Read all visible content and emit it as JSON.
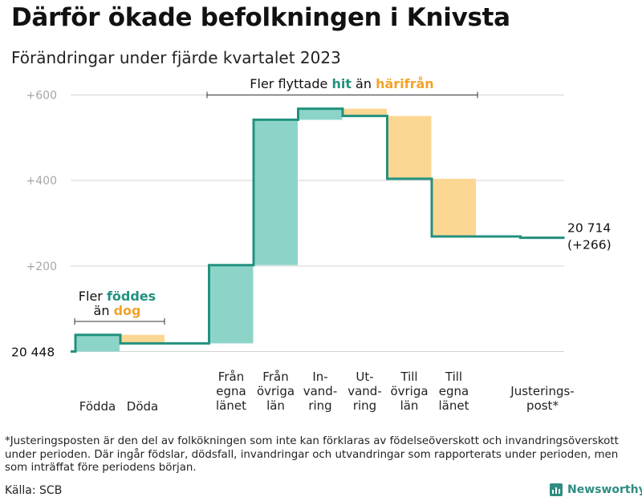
{
  "title": "Därför ökade befolkningen i Knivsta",
  "subtitle": "Förändringar under fjärde kvartalet 2023",
  "chart_data": {
    "type": "waterfall",
    "start_value": 20448,
    "start_label": "20  448",
    "end_label": "20 714",
    "end_change_label": "(+266)",
    "y_ticks": [
      {
        "value": 200,
        "label": "+200"
      },
      {
        "value": 400,
        "label": "+400"
      },
      {
        "value": 600,
        "label": "+600"
      }
    ],
    "ylim": [
      0,
      600
    ],
    "steps": [
      {
        "label": [
          "Födda"
        ],
        "change": 39
      },
      {
        "label": [
          "Döda"
        ],
        "change": -20
      },
      {
        "label": [
          "Från",
          "egna",
          "länet"
        ],
        "change": 183
      },
      {
        "label": [
          "Från",
          "övriga",
          "län"
        ],
        "change": 340
      },
      {
        "label": [
          "In-",
          "vand-",
          "ring"
        ],
        "change": 26
      },
      {
        "label": [
          "Ut-",
          "vand-",
          "ring"
        ],
        "change": -17
      },
      {
        "label": [
          "Till",
          "övriga",
          "län"
        ],
        "change": -147
      },
      {
        "label": [
          "Till",
          "egna",
          "länet"
        ],
        "change": -135
      },
      {
        "label": [
          "Justerings-",
          "post*"
        ],
        "change": -3
      }
    ],
    "annotations": {
      "births": {
        "line1": "Fler ",
        "line1_highlight": "föddes",
        "line2": "än ",
        "line2_highlight": "dog"
      },
      "migration": {
        "prefix": "Fler flyttade ",
        "highlight1": "hit",
        "middle": " än ",
        "highlight2": "härifrån"
      }
    },
    "colors": {
      "increase": "#8dd4c8",
      "decrease": "#fcd793",
      "line": "#23917f",
      "increase_text": "#23917f",
      "decrease_text": "#f2a22b",
      "grid": "#d3d3d3",
      "tick_text": "#a6a6a6"
    }
  },
  "footnote": "*Justeringsposten är den del av folkökningen som inte kan förklaras av födelseöverskott och invandringsöverskott under perioden. Där ingår födslar, dödsfall, invandringar och utvandringar som rapporterats under perioden, men som inträffat före periodens början.",
  "source": "Källa: SCB",
  "brand": "Newsworthy"
}
